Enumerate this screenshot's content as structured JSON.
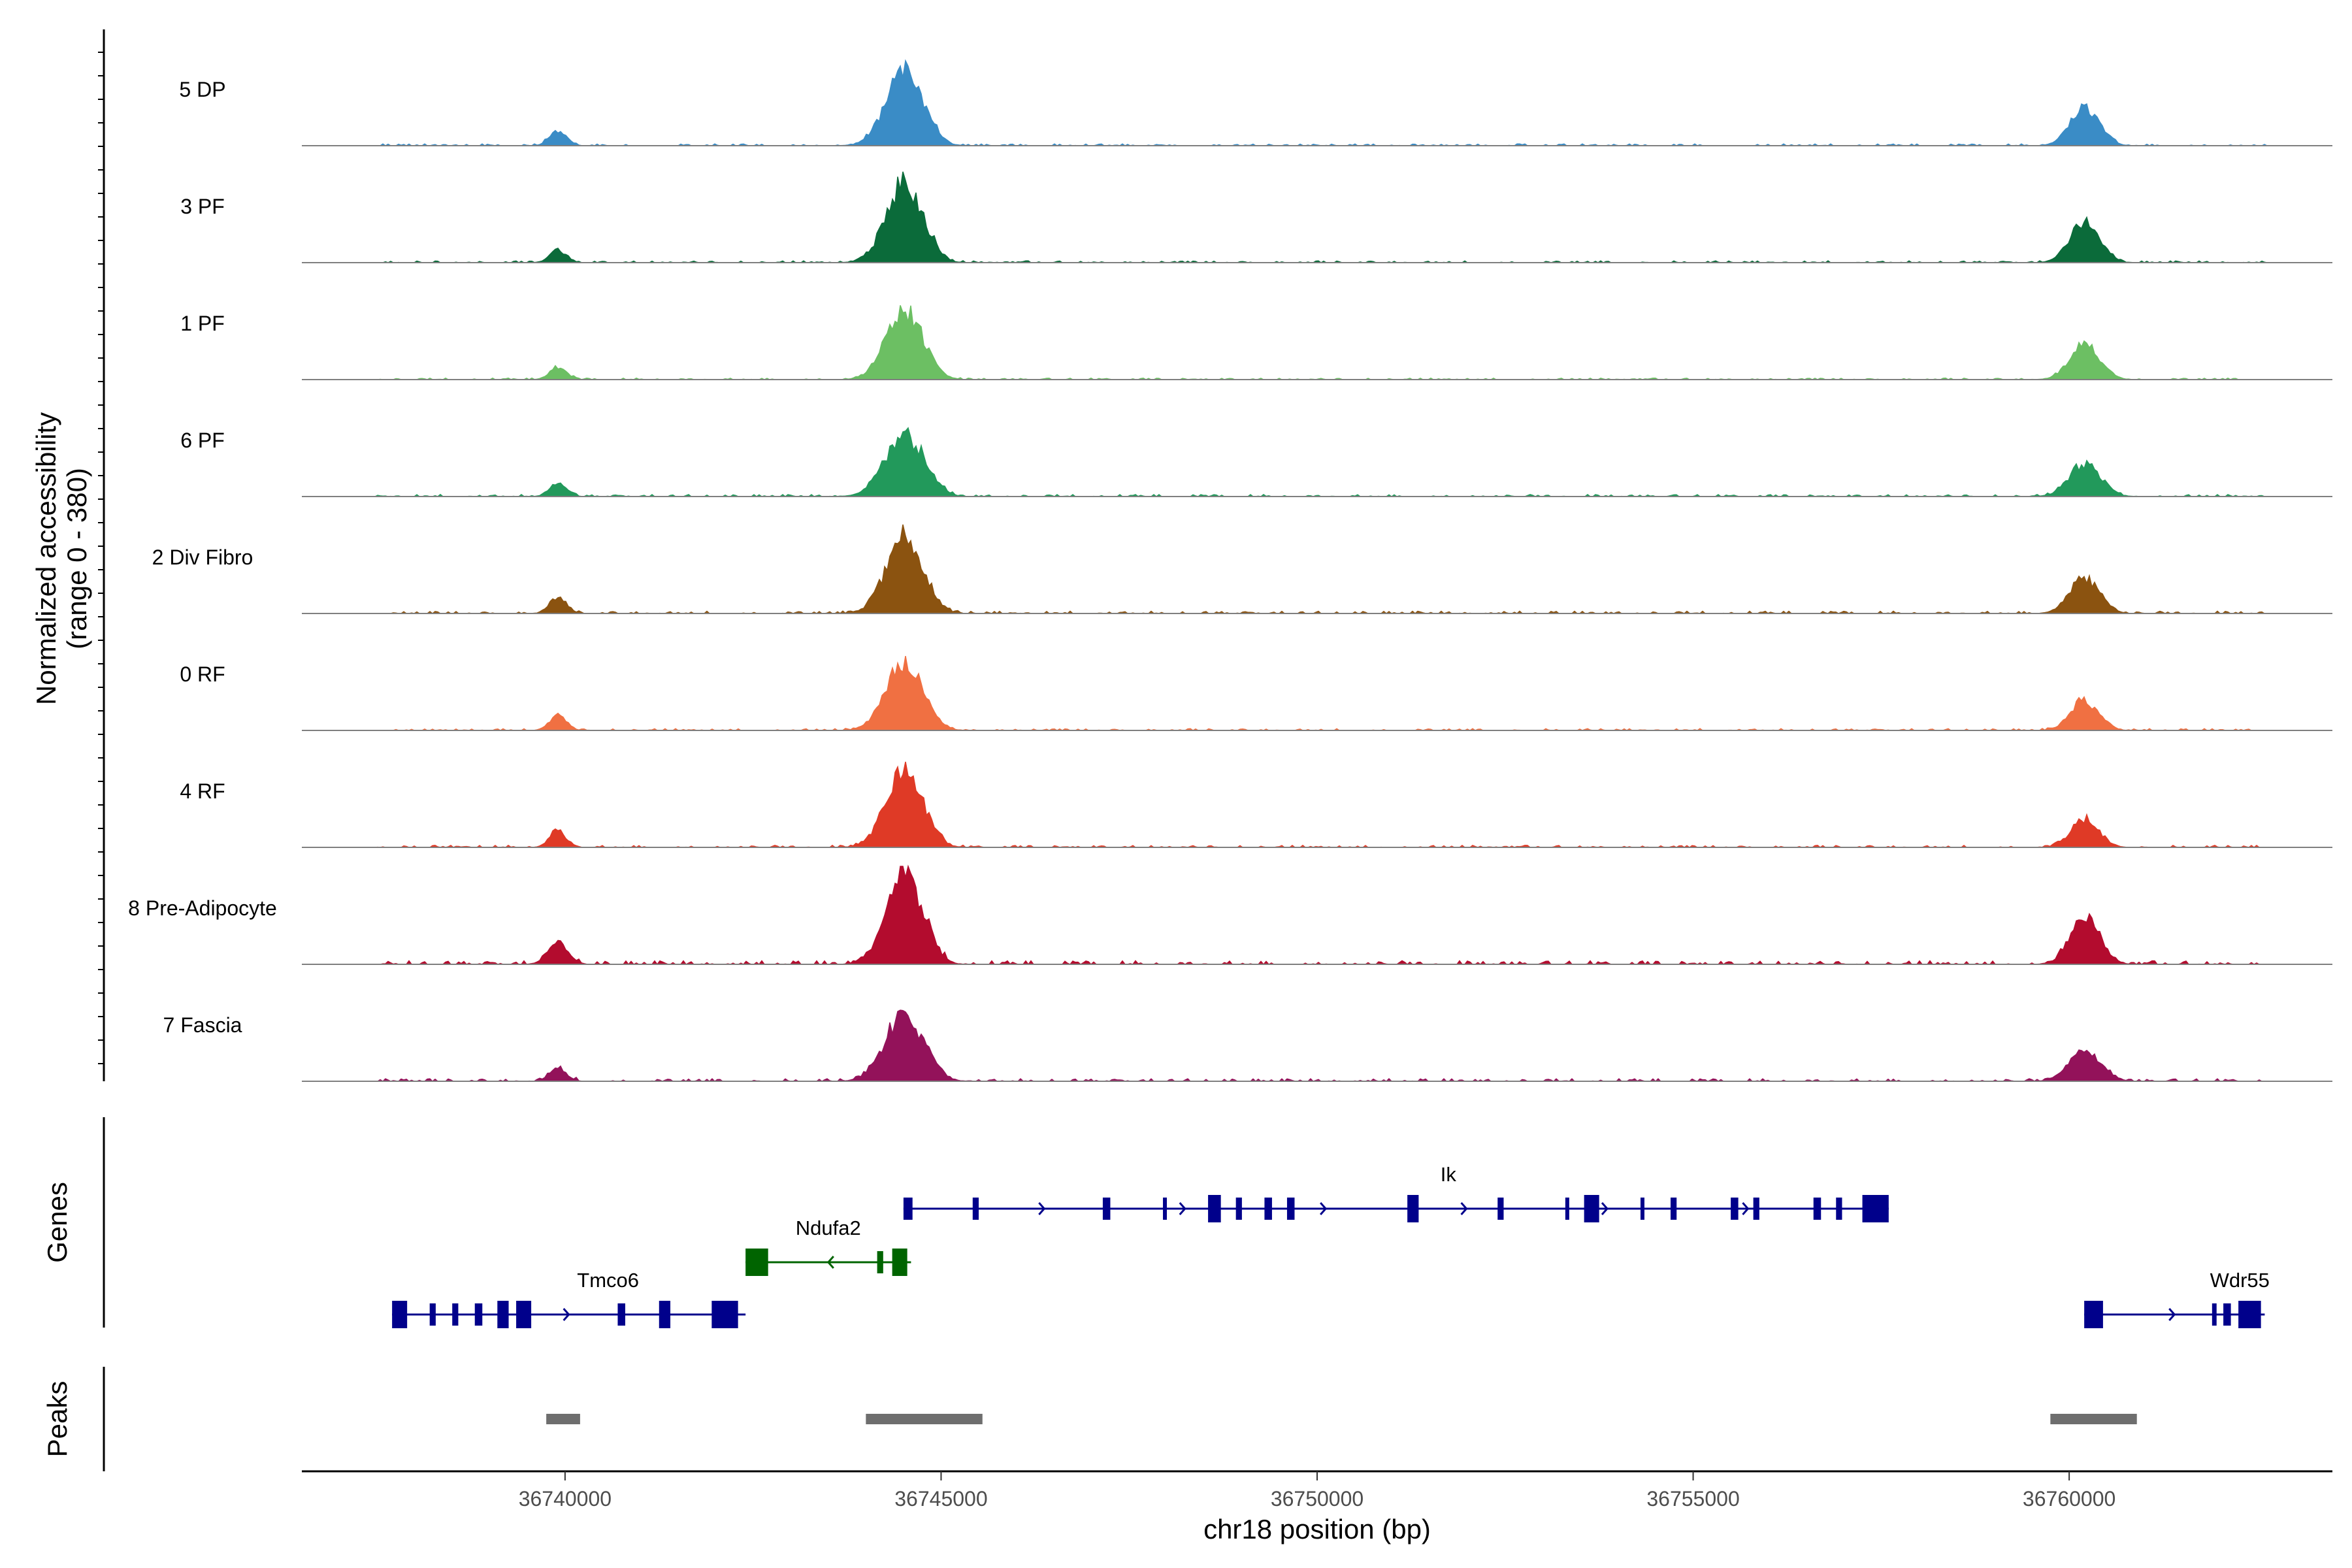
{
  "chart_data": {
    "type": "area",
    "title": "",
    "ylabel_line1": "Normalized accessibility",
    "ylabel_line2": "(range 0 - 380)",
    "y_range": [
      0,
      380
    ],
    "xlabel": "chr18 position (bp)",
    "xlim": [
      36736500,
      36763500
    ],
    "x_ticks": [
      36740000,
      36745000,
      36750000,
      36755000,
      36760000
    ],
    "x_tick_labels": [
      "36740000",
      "36745000",
      "36750000",
      "36755000",
      "36760000"
    ],
    "peak_centers": [
      36739900,
      36744500,
      36760200
    ],
    "series": [
      {
        "name": "5 DP",
        "color": "#3a8cc6",
        "peaks": [
          [
            36739900,
            65,
            90
          ],
          [
            36744500,
            330,
            200
          ],
          [
            36760200,
            160,
            160
          ]
        ],
        "noise": 7
      },
      {
        "name": "3 PF",
        "color": "#0b6b3a",
        "peaks": [
          [
            36739900,
            50,
            90
          ],
          [
            36744500,
            340,
            200
          ],
          [
            36760200,
            170,
            160
          ]
        ],
        "noise": 7
      },
      {
        "name": "1 PF",
        "color": "#6cbf63",
        "peaks": [
          [
            36739900,
            55,
            90
          ],
          [
            36744500,
            300,
            200
          ],
          [
            36760200,
            150,
            160
          ]
        ],
        "noise": 6
      },
      {
        "name": "6 PF",
        "color": "#22995b",
        "peaks": [
          [
            36739900,
            60,
            90
          ],
          [
            36744500,
            270,
            210
          ],
          [
            36760200,
            140,
            170
          ]
        ],
        "noise": 8
      },
      {
        "name": "2 Div Fibro",
        "color": "#8b5310",
        "peaks": [
          [
            36739900,
            70,
            90
          ],
          [
            36744500,
            330,
            200
          ],
          [
            36760200,
            155,
            160
          ]
        ],
        "noise": 9
      },
      {
        "name": "0 RF",
        "color": "#f07042",
        "peaks": [
          [
            36739900,
            65,
            90
          ],
          [
            36744500,
            290,
            200
          ],
          [
            36760200,
            130,
            150
          ]
        ],
        "noise": 7
      },
      {
        "name": "4 RF",
        "color": "#df3a26",
        "peaks": [
          [
            36739900,
            70,
            90
          ],
          [
            36744500,
            330,
            200
          ],
          [
            36760200,
            120,
            150
          ]
        ],
        "noise": 8
      },
      {
        "name": "8 Pre-Adipocyte",
        "color": "#b30c2e",
        "peaks": [
          [
            36739900,
            90,
            110
          ],
          [
            36744500,
            380,
            200
          ],
          [
            36760200,
            200,
            160
          ]
        ],
        "noise": 14
      },
      {
        "name": "7 Fascia",
        "color": "#93125a",
        "peaks": [
          [
            36739900,
            60,
            90
          ],
          [
            36744500,
            290,
            210
          ],
          [
            36760200,
            130,
            170
          ]
        ],
        "noise": 10
      }
    ],
    "genes_title": "Genes",
    "genes": [
      {
        "name": "Ik",
        "strand": "+",
        "color": "#00008b",
        "start": 36744500,
        "end": 36757600,
        "exons": [
          [
            36744500,
            36744620
          ],
          [
            36745420,
            36745500
          ],
          [
            36747150,
            36747250
          ],
          [
            36747950,
            36748000
          ],
          [
            36748550,
            36748720
          ],
          [
            36748920,
            36749000
          ],
          [
            36749300,
            36749400
          ],
          [
            36749600,
            36749700
          ],
          [
            36751200,
            36751350
          ],
          [
            36752400,
            36752480
          ],
          [
            36753300,
            36753340
          ],
          [
            36753550,
            36753750
          ],
          [
            36754300,
            36754320
          ],
          [
            36754700,
            36754780
          ],
          [
            36755500,
            36755600
          ],
          [
            36755800,
            36755880
          ],
          [
            36756600,
            36756700
          ],
          [
            36756900,
            36756980
          ],
          [
            36757250,
            36757600
          ]
        ]
      },
      {
        "name": "Ndufa2",
        "strand": "-",
        "color": "#006400",
        "start": 36742400,
        "end": 36744600,
        "exons": [
          [
            36742400,
            36742700
          ],
          [
            36744150,
            36744230
          ],
          [
            36744350,
            36744550
          ]
        ]
      },
      {
        "name": "Tmco6",
        "strand": "+",
        "color": "#00008b",
        "start": 36737700,
        "end": 36742400,
        "exons": [
          [
            36737700,
            36737900
          ],
          [
            36738200,
            36738280
          ],
          [
            36738500,
            36738580
          ],
          [
            36738800,
            36738900
          ],
          [
            36739100,
            36739250
          ],
          [
            36739350,
            36739550
          ],
          [
            36740700,
            36740800
          ],
          [
            36741250,
            36741400
          ],
          [
            36741950,
            36742300
          ]
        ]
      },
      {
        "name": "Wdr55",
        "strand": "+",
        "color": "#00008b",
        "start": 36760200,
        "end": 36762600,
        "exons": [
          [
            36760200,
            36760450
          ],
          [
            36761900,
            36761960
          ],
          [
            36762050,
            36762150
          ],
          [
            36762250,
            36762550
          ]
        ]
      }
    ],
    "peaks_title": "Peaks",
    "peaks": [
      [
        36739750,
        36740200
      ],
      [
        36744000,
        36745550
      ],
      [
        36759750,
        36760900
      ]
    ]
  }
}
